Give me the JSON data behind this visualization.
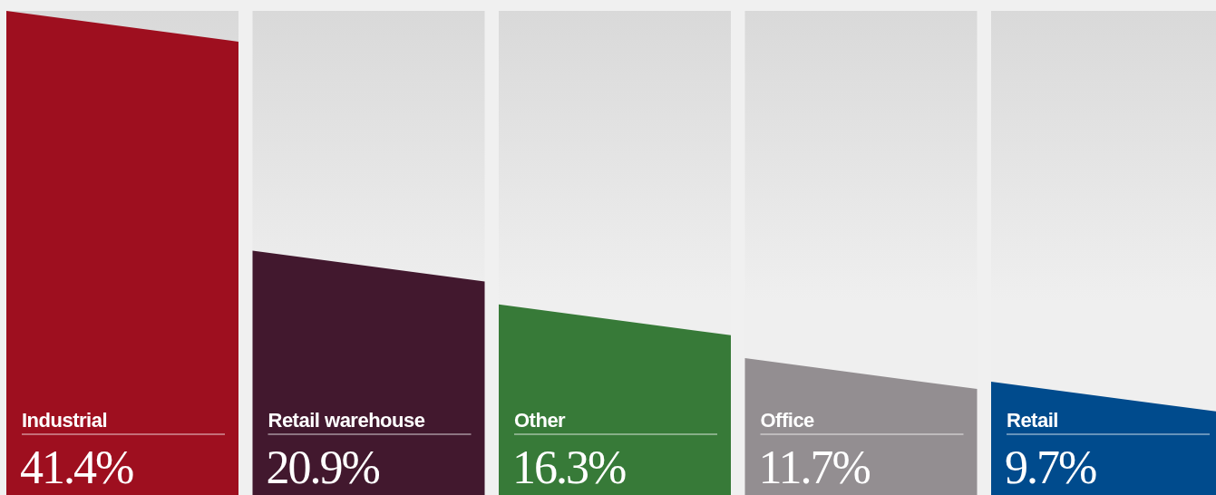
{
  "chart_data": {
    "type": "bar",
    "categories": [
      "Industrial",
      "Retail warehouse",
      "Other",
      "Office",
      "Retail"
    ],
    "values": [
      41.4,
      20.9,
      16.3,
      11.7,
      9.7
    ],
    "colors": [
      "#9e0f1f",
      "#42182e",
      "#377a38",
      "#938e91",
      "#004b8d"
    ],
    "value_labels": [
      "41.4%",
      "20.9%",
      "16.3%",
      "11.7%",
      "9.7%"
    ]
  }
}
